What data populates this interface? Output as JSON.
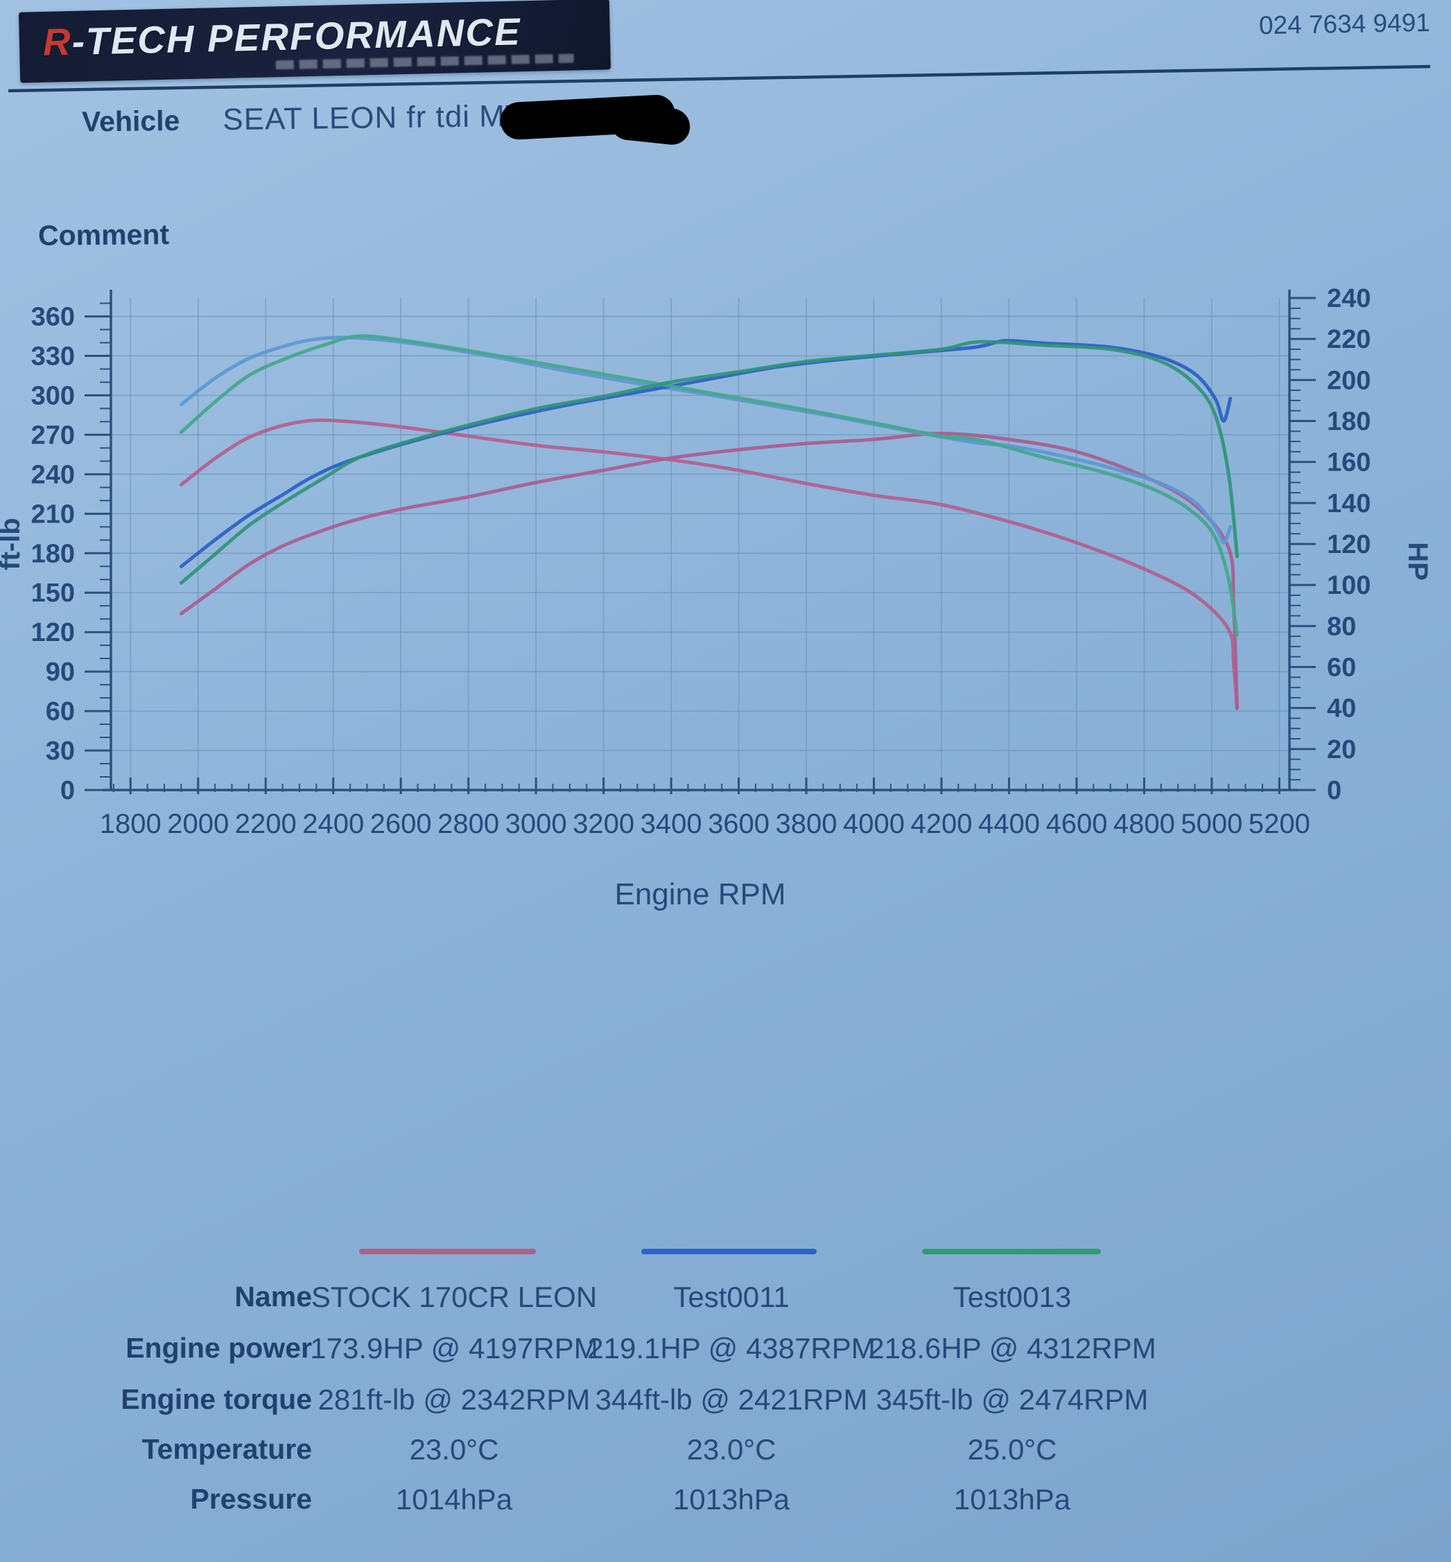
{
  "page": {
    "ink": "#27497a",
    "accent_red": "#c23a35",
    "paper_blue": "#8db3d9"
  },
  "header": {
    "logo_text_first": "R",
    "logo_text_rest": "-TECH PERFORMANCE",
    "phone": "024 7634 9491"
  },
  "vehicle": {
    "label": "Vehicle",
    "value": "SEAT LEON fr tdi MT 0 HP;"
  },
  "comment": {
    "label": "Comment"
  },
  "chart_data": {
    "type": "line",
    "title": "",
    "xlabel": "Engine RPM",
    "ylabel_left": "ft-lb",
    "ylabel_right": "HP",
    "x_range": [
      1742,
      5230
    ],
    "y_left_range": [
      0,
      374
    ],
    "y_right_range": [
      0,
      240
    ],
    "x_ticks": [
      1800,
      2000,
      2200,
      2400,
      2600,
      2800,
      3000,
      3200,
      3400,
      3600,
      3800,
      4000,
      4200,
      4400,
      4600,
      4800,
      5000,
      5200
    ],
    "x_minor_step": 50,
    "y_left_ticks": [
      0,
      30,
      60,
      90,
      120,
      150,
      180,
      210,
      240,
      270,
      300,
      330,
      360
    ],
    "y_left_minor_step": 10,
    "y_right_ticks": [
      0,
      20,
      40,
      60,
      80,
      100,
      120,
      140,
      160,
      180,
      200,
      220,
      240
    ],
    "y_right_minor_step": 5,
    "grid": true,
    "axis_color": "#2c5180",
    "grid_color": "#6a8fb5",
    "series": [
      {
        "name": "STOCK 170CR LEON",
        "color": "#b25f8e",
        "torque_color": "#b2608f",
        "power_color": "#aa5c90",
        "peak_power": "173.9HP @ 4197RPM",
        "peak_torque": "281ft-lb @ 2342RPM",
        "torque": [
          [
            1950,
            232
          ],
          [
            2050,
            252
          ],
          [
            2150,
            268
          ],
          [
            2250,
            277
          ],
          [
            2342,
            281
          ],
          [
            2450,
            280
          ],
          [
            2600,
            276
          ],
          [
            2800,
            269
          ],
          [
            3000,
            262
          ],
          [
            3200,
            257
          ],
          [
            3400,
            251
          ],
          [
            3600,
            243
          ],
          [
            3800,
            233
          ],
          [
            4000,
            224
          ],
          [
            4197,
            217
          ],
          [
            4400,
            204
          ],
          [
            4600,
            188
          ],
          [
            4800,
            168
          ],
          [
            4950,
            148
          ],
          [
            5050,
            122
          ],
          [
            5065,
            95
          ],
          [
            5075,
            62
          ]
        ],
        "power": [
          [
            1950,
            86
          ],
          [
            2050,
            98
          ],
          [
            2150,
            110
          ],
          [
            2250,
            119
          ],
          [
            2342,
            125
          ],
          [
            2450,
            131
          ],
          [
            2600,
            137
          ],
          [
            2800,
            143
          ],
          [
            3000,
            150
          ],
          [
            3200,
            156
          ],
          [
            3400,
            162
          ],
          [
            3600,
            166
          ],
          [
            3800,
            169
          ],
          [
            4000,
            171
          ],
          [
            4197,
            173.9
          ],
          [
            4400,
            171
          ],
          [
            4600,
            165
          ],
          [
            4800,
            153
          ],
          [
            4950,
            139
          ],
          [
            5050,
            118
          ],
          [
            5065,
            90
          ],
          [
            5075,
            40
          ]
        ]
      },
      {
        "name": "Test0011",
        "color": "#2e63c6",
        "torque_color": "#5e97d3",
        "power_color": "#2b5fc4",
        "peak_power": "219.1HP @ 4387RPM",
        "peak_torque": "344ft-lb @ 2421RPM",
        "torque": [
          [
            1950,
            293
          ],
          [
            2050,
            313
          ],
          [
            2150,
            328
          ],
          [
            2250,
            337
          ],
          [
            2330,
            342
          ],
          [
            2421,
            344
          ],
          [
            2550,
            342
          ],
          [
            2700,
            337
          ],
          [
            2900,
            328
          ],
          [
            3100,
            318
          ],
          [
            3300,
            309
          ],
          [
            3500,
            301
          ],
          [
            3700,
            292
          ],
          [
            3900,
            283
          ],
          [
            4100,
            273
          ],
          [
            4300,
            264
          ],
          [
            4387,
            262
          ],
          [
            4500,
            257
          ],
          [
            4700,
            245
          ],
          [
            4850,
            233
          ],
          [
            4950,
            219
          ],
          [
            5010,
            200
          ],
          [
            5035,
            188
          ],
          [
            5055,
            200
          ]
        ],
        "power": [
          [
            1950,
            109
          ],
          [
            2050,
            122
          ],
          [
            2150,
            134
          ],
          [
            2250,
            144
          ],
          [
            2330,
            152
          ],
          [
            2421,
            159
          ],
          [
            2550,
            166
          ],
          [
            2700,
            173
          ],
          [
            2900,
            181
          ],
          [
            3100,
            188
          ],
          [
            3300,
            194
          ],
          [
            3500,
            200
          ],
          [
            3700,
            206
          ],
          [
            3900,
            210
          ],
          [
            4100,
            213
          ],
          [
            4300,
            216
          ],
          [
            4387,
            219.1
          ],
          [
            4500,
            218
          ],
          [
            4700,
            216
          ],
          [
            4850,
            211
          ],
          [
            4950,
            203
          ],
          [
            5010,
            191
          ],
          [
            5035,
            180
          ],
          [
            5055,
            191
          ]
        ]
      },
      {
        "name": "Test0013",
        "color": "#339a75",
        "torque_color": "#43a78b",
        "power_color": "#2f9478",
        "peak_power": "218.6HP @ 4312RPM",
        "peak_torque": "345ft-lb @ 2474RPM",
        "torque": [
          [
            1950,
            272
          ],
          [
            2050,
            295
          ],
          [
            2150,
            315
          ],
          [
            2250,
            327
          ],
          [
            2370,
            338
          ],
          [
            2474,
            345
          ],
          [
            2600,
            342
          ],
          [
            2800,
            334
          ],
          [
            3000,
            325
          ],
          [
            3200,
            316
          ],
          [
            3400,
            307
          ],
          [
            3600,
            298
          ],
          [
            3800,
            289
          ],
          [
            4000,
            279
          ],
          [
            4200,
            269
          ],
          [
            4312,
            266
          ],
          [
            4500,
            253
          ],
          [
            4700,
            240
          ],
          [
            4850,
            226
          ],
          [
            4950,
            210
          ],
          [
            5010,
            192
          ],
          [
            5050,
            160
          ],
          [
            5075,
            118
          ]
        ],
        "power": [
          [
            1950,
            101
          ],
          [
            2050,
            115
          ],
          [
            2150,
            129
          ],
          [
            2250,
            140
          ],
          [
            2370,
            152
          ],
          [
            2474,
            162
          ],
          [
            2600,
            169
          ],
          [
            2800,
            178
          ],
          [
            3000,
            186
          ],
          [
            3200,
            192
          ],
          [
            3400,
            199
          ],
          [
            3600,
            204
          ],
          [
            3800,
            209
          ],
          [
            4000,
            212
          ],
          [
            4200,
            215
          ],
          [
            4312,
            218.6
          ],
          [
            4500,
            217
          ],
          [
            4700,
            215
          ],
          [
            4850,
            209
          ],
          [
            4950,
            198
          ],
          [
            5010,
            183
          ],
          [
            5050,
            154
          ],
          [
            5075,
            114
          ]
        ]
      }
    ]
  },
  "legend": {
    "rows": [
      {
        "label": "Name",
        "values": [
          "STOCK 170CR LEON",
          "Test0011",
          "Test0013"
        ]
      },
      {
        "label": "Engine power",
        "values": [
          "173.9HP @ 4197RPM",
          "219.1HP @ 4387RPM",
          "218.6HP @ 4312RPM"
        ]
      },
      {
        "label": "Engine torque",
        "values": [
          "281ft-lb @ 2342RPM",
          "344ft-lb @ 2421RPM",
          "345ft-lb @ 2474RPM"
        ]
      },
      {
        "label": "Temperature",
        "values": [
          "23.0°C",
          "23.0°C",
          "25.0°C"
        ]
      },
      {
        "label": "Pressure",
        "values": [
          "1014hPa",
          "1013hPa",
          "1013hPa"
        ]
      }
    ]
  }
}
